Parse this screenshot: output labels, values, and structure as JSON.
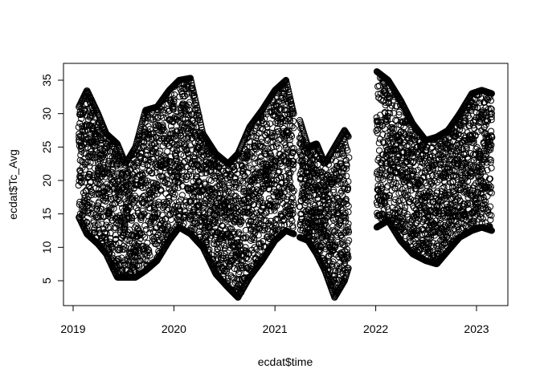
{
  "chart_data": {
    "type": "scatter",
    "title": "",
    "xlabel": "ecdat$time",
    "ylabel": "ecdat$Tc_Avg",
    "xlim": [
      "2019-01-01",
      "2023-03-01"
    ],
    "ylim": [
      2,
      37
    ],
    "x_ticks": [
      "2019",
      "2020",
      "2021",
      "2022",
      "2023"
    ],
    "y_ticks": [
      "5",
      "10",
      "15",
      "20",
      "25",
      "30",
      "35"
    ],
    "grid": false,
    "legend": "none",
    "marker": "open-circle",
    "marker_color": "#000000",
    "series": [
      {
        "segments": [
          {
            "x_range": [
              "2019-01-22",
              "2021-03-10"
            ],
            "envelope": [
              {
                "x": "2019-01-22",
                "ymin": 14.5,
                "ymax": 31.0
              },
              {
                "x": "2019-02-20",
                "ymin": 12.0,
                "ymax": 33.5
              },
              {
                "x": "2019-04-01",
                "ymin": 10.5,
                "ymax": 30.0
              },
              {
                "x": "2019-05-01",
                "ymin": 9.0,
                "ymax": 27.0
              },
              {
                "x": "2019-06-10",
                "ymin": 5.5,
                "ymax": 25.5
              },
              {
                "x": "2019-07-10",
                "ymin": 5.5,
                "ymax": 22.5
              },
              {
                "x": "2019-08-15",
                "ymin": 5.5,
                "ymax": 25.0
              },
              {
                "x": "2019-09-20",
                "ymin": 6.5,
                "ymax": 30.5
              },
              {
                "x": "2019-11-01",
                "ymin": 8.0,
                "ymax": 31.0
              },
              {
                "x": "2019-12-15",
                "ymin": 11.0,
                "ymax": 33.5
              },
              {
                "x": "2020-01-20",
                "ymin": 13.0,
                "ymax": 35.0
              },
              {
                "x": "2020-03-01",
                "ymin": 12.0,
                "ymax": 35.3
              },
              {
                "x": "2020-04-15",
                "ymin": 10.0,
                "ymax": 27.0
              },
              {
                "x": "2020-06-01",
                "ymin": 6.0,
                "ymax": 24.0
              },
              {
                "x": "2020-07-15",
                "ymin": 4.0,
                "ymax": 22.5
              },
              {
                "x": "2020-08-20",
                "ymin": 2.5,
                "ymax": 24.0
              },
              {
                "x": "2020-10-01",
                "ymin": 5.5,
                "ymax": 28.0
              },
              {
                "x": "2020-11-15",
                "ymin": 8.0,
                "ymax": 30.5
              },
              {
                "x": "2021-01-01",
                "ymin": 11.0,
                "ymax": 33.5
              },
              {
                "x": "2021-02-10",
                "ymin": 12.5,
                "ymax": 35.0
              },
              {
                "x": "2021-03-10",
                "ymin": 12.0,
                "ymax": 30.0
              }
            ]
          },
          {
            "x_range": [
              "2021-04-01",
              "2021-09-25"
            ],
            "envelope": [
              {
                "x": "2021-04-01",
                "ymin": 11.5,
                "ymax": 29.0
              },
              {
                "x": "2021-05-01",
                "ymin": 11.0,
                "ymax": 25.0
              },
              {
                "x": "2021-06-01",
                "ymin": 9.0,
                "ymax": 25.5
              },
              {
                "x": "2021-07-01",
                "ymin": 6.5,
                "ymax": 22.5
              },
              {
                "x": "2021-08-05",
                "ymin": 2.5,
                "ymax": 25.0
              },
              {
                "x": "2021-09-10",
                "ymin": 5.0,
                "ymax": 27.5
              },
              {
                "x": "2021-09-25",
                "ymin": 7.0,
                "ymax": 26.5
              }
            ]
          },
          {
            "x_range": [
              "2022-01-05",
              "2023-02-25"
            ],
            "envelope": [
              {
                "x": "2022-01-05",
                "ymin": 13.0,
                "ymax": 36.3
              },
              {
                "x": "2022-02-15",
                "ymin": 14.0,
                "ymax": 35.0
              },
              {
                "x": "2022-04-01",
                "ymin": 11.0,
                "ymax": 32.0
              },
              {
                "x": "2022-05-15",
                "ymin": 9.0,
                "ymax": 28.5
              },
              {
                "x": "2022-07-01",
                "ymin": 8.0,
                "ymax": 26.0
              },
              {
                "x": "2022-08-10",
                "ymin": 7.5,
                "ymax": 26.5
              },
              {
                "x": "2022-09-20",
                "ymin": 9.5,
                "ymax": 27.5
              },
              {
                "x": "2022-11-01",
                "ymin": 11.5,
                "ymax": 30.0
              },
              {
                "x": "2022-12-15",
                "ymin": 12.5,
                "ymax": 33.0
              },
              {
                "x": "2023-01-20",
                "ymin": 13.0,
                "ymax": 33.5
              },
              {
                "x": "2023-02-25",
                "ymin": 12.5,
                "ymax": 33.0
              }
            ]
          }
        ]
      }
    ]
  }
}
